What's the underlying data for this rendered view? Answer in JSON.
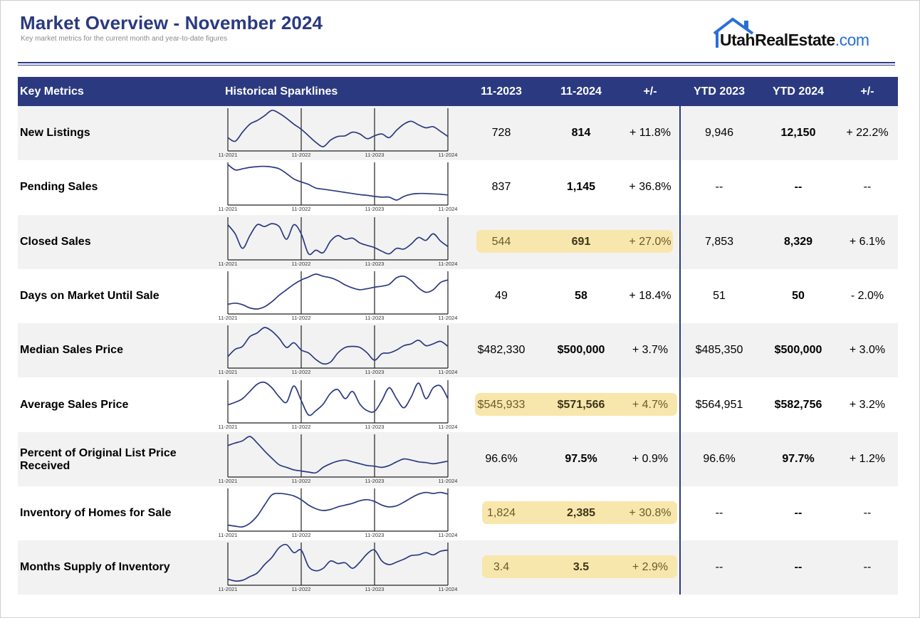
{
  "header": {
    "title": "Market Overview - November 2024",
    "subtitle": "Key market metrics for the current month and year-to-date figures"
  },
  "logo": {
    "text_main": "UtahRealEstate",
    "text_suffix": ".com"
  },
  "columns": {
    "metric": "Key Metrics",
    "sparklines": "Historical Sparklines",
    "m2023": "11-2023",
    "m2024": "11-2024",
    "pm1": "+/-",
    "ytd2023": "YTD 2023",
    "ytd2024": "YTD 2024",
    "pm2": "+/-"
  },
  "spark_axis": [
    "11-2021",
    "11-2022",
    "11-2023",
    "11-2024"
  ],
  "colors": {
    "header_bg": "#2b3a80",
    "highlight": "#f8e6a8",
    "sparkline": "#2b3a80"
  },
  "rows": [
    {
      "metric": "New Listings",
      "m2023": "728",
      "m2024": "814",
      "pm1": "+ 11.8%",
      "ytd2023": "9,946",
      "ytd2024": "12,150",
      "pm2": "+ 22.2%",
      "highlight": false,
      "spark": [
        0.25,
        0.15,
        0.4,
        0.62,
        0.72,
        0.85,
        1.0,
        0.92,
        0.78,
        0.62,
        0.48,
        0.3,
        0.12,
        0.0,
        0.18,
        0.28,
        0.3,
        0.4,
        0.35,
        0.22,
        0.3,
        0.35,
        0.25,
        0.45,
        0.62,
        0.7,
        0.6,
        0.52,
        0.55,
        0.42,
        0.28
      ]
    },
    {
      "metric": "Pending Sales",
      "m2023": "837",
      "m2024": "1,145",
      "pm1": "+ 36.8%",
      "ytd2023": "--",
      "ytd2024": "--",
      "pm2": "--",
      "highlight": false,
      "spark": [
        1.0,
        0.85,
        0.88,
        0.92,
        0.94,
        0.95,
        0.93,
        0.88,
        0.75,
        0.6,
        0.52,
        0.45,
        0.35,
        0.32,
        0.29,
        0.26,
        0.23,
        0.2,
        0.17,
        0.15,
        0.12,
        0.1,
        0.1,
        0.02,
        0.12,
        0.18,
        0.2,
        0.2,
        0.19,
        0.18,
        0.16
      ]
    },
    {
      "metric": "Closed Sales",
      "m2023": "544",
      "m2024": "691",
      "pm1": "+ 27.0%",
      "ytd2023": "7,853",
      "ytd2024": "8,329",
      "pm2": "+ 6.1%",
      "highlight": true,
      "spark": [
        0.85,
        0.6,
        0.2,
        0.55,
        0.85,
        0.8,
        0.88,
        0.8,
        0.45,
        0.85,
        0.6,
        0.05,
        0.15,
        0.08,
        0.4,
        0.55,
        0.45,
        0.48,
        0.35,
        0.28,
        0.22,
        0.12,
        0.05,
        0.2,
        0.18,
        0.32,
        0.5,
        0.42,
        0.6,
        0.4,
        0.25
      ]
    },
    {
      "metric": "Days on Market Until Sale",
      "m2023": "49",
      "m2024": "58",
      "pm1": "+ 18.4%",
      "ytd2023": "51",
      "ytd2024": "50",
      "pm2": "- 2.0%",
      "highlight": false,
      "spark": [
        0.15,
        0.18,
        0.14,
        0.05,
        0.02,
        0.08,
        0.22,
        0.4,
        0.55,
        0.7,
        0.82,
        0.9,
        0.98,
        0.92,
        0.88,
        0.8,
        0.68,
        0.6,
        0.55,
        0.58,
        0.62,
        0.65,
        0.7,
        0.88,
        0.92,
        0.8,
        0.6,
        0.48,
        0.55,
        0.75,
        0.82
      ]
    },
    {
      "metric": "Median Sales Price",
      "m2023": "$482,330",
      "m2024": "$500,000",
      "pm1": "+ 3.7%",
      "ytd2023": "$485,350",
      "ytd2024": "$500,000",
      "pm2": "+ 3.0%",
      "highlight": false,
      "spark": [
        0.2,
        0.4,
        0.48,
        0.75,
        0.85,
        1.0,
        0.9,
        0.7,
        0.45,
        0.58,
        0.38,
        0.3,
        0.12,
        0.0,
        0.05,
        0.3,
        0.45,
        0.48,
        0.45,
        0.3,
        0.1,
        0.28,
        0.3,
        0.38,
        0.5,
        0.55,
        0.65,
        0.5,
        0.55,
        0.62,
        0.48
      ]
    },
    {
      "metric": "Average Sales Price",
      "m2023": "$545,933",
      "m2024": "$571,566",
      "pm1": "+ 4.7%",
      "ytd2023": "$564,951",
      "ytd2024": "$582,756",
      "pm2": "+ 3.2%",
      "highlight": true,
      "spark": [
        0.38,
        0.45,
        0.55,
        0.75,
        0.95,
        1.0,
        0.85,
        0.6,
        0.45,
        0.9,
        0.5,
        0.1,
        0.22,
        0.4,
        0.7,
        0.8,
        0.55,
        0.75,
        0.4,
        0.22,
        0.2,
        0.5,
        0.85,
        0.55,
        0.3,
        0.6,
        0.98,
        0.55,
        0.85,
        0.9,
        0.55
      ]
    },
    {
      "metric": "Percent of Original List Price Received",
      "m2023": "96.6%",
      "m2024": "97.5%",
      "pm1": "+ 0.9%",
      "ytd2023": "96.6%",
      "ytd2024": "97.7%",
      "pm2": "+ 1.2%",
      "highlight": false,
      "spark": [
        0.75,
        0.82,
        0.88,
        1.0,
        0.82,
        0.6,
        0.4,
        0.22,
        0.15,
        0.08,
        0.05,
        0.02,
        0.0,
        0.15,
        0.25,
        0.32,
        0.35,
        0.3,
        0.25,
        0.2,
        0.18,
        0.15,
        0.2,
        0.3,
        0.38,
        0.35,
        0.3,
        0.28,
        0.25,
        0.28,
        0.32
      ]
    },
    {
      "metric": "Inventory of Homes for Sale",
      "m2023": "1,824",
      "m2024": "2,385",
      "pm1": "+ 30.8%",
      "ytd2023": "--",
      "ytd2024": "--",
      "pm2": "--",
      "highlight": true,
      "spark": [
        0.05,
        0.02,
        0.0,
        0.1,
        0.3,
        0.6,
        0.88,
        0.92,
        0.9,
        0.85,
        0.75,
        0.6,
        0.5,
        0.45,
        0.48,
        0.55,
        0.6,
        0.65,
        0.72,
        0.75,
        0.7,
        0.6,
        0.55,
        0.58,
        0.68,
        0.8,
        0.9,
        0.95,
        0.92,
        0.95,
        0.9
      ]
    },
    {
      "metric": "Months Supply of Inventory",
      "m2023": "3.4",
      "m2024": "3.5",
      "pm1": "+ 2.9%",
      "ytd2023": "--",
      "ytd2024": "--",
      "pm2": "--",
      "highlight": true,
      "spark": [
        0.05,
        0.0,
        0.02,
        0.12,
        0.22,
        0.45,
        0.65,
        0.92,
        1.0,
        0.78,
        0.85,
        0.4,
        0.28,
        0.35,
        0.55,
        0.48,
        0.5,
        0.35,
        0.52,
        0.75,
        0.85,
        0.55,
        0.45,
        0.52,
        0.6,
        0.7,
        0.72,
        0.78,
        0.72,
        0.82,
        0.85
      ]
    }
  ]
}
